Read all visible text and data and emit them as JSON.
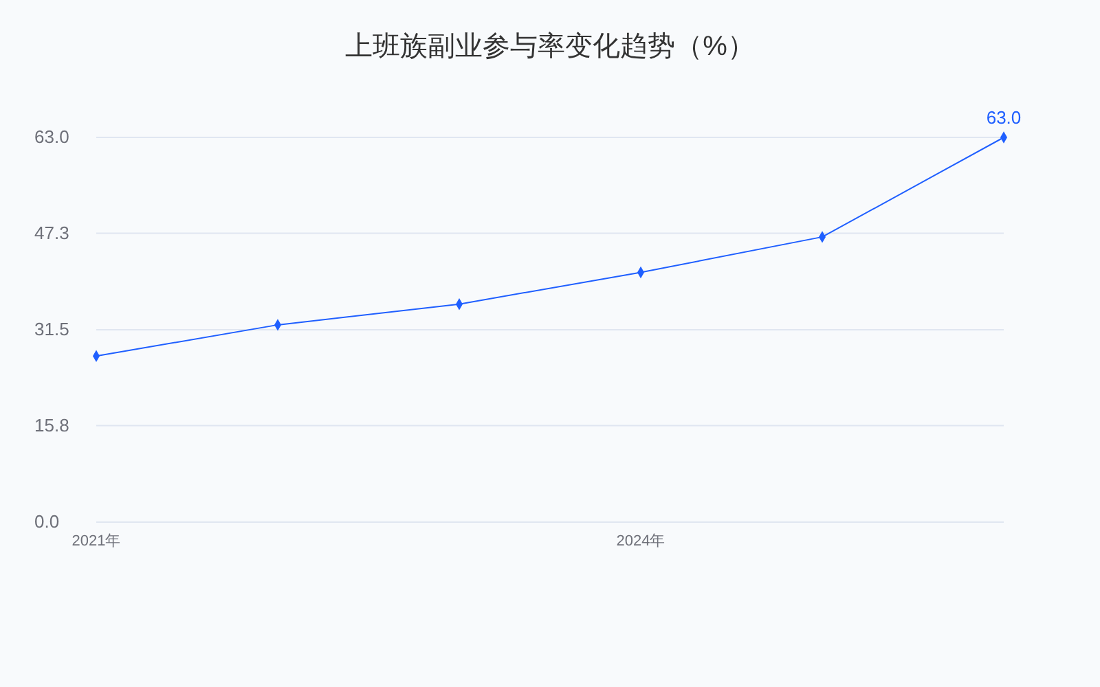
{
  "chart_data": {
    "type": "line",
    "title": "上班族副业参与率变化趋势（%）",
    "categories": [
      "2021年",
      null,
      null,
      "2024年",
      null,
      null
    ],
    "series": [
      {
        "color": "#1f5fff",
        "values": [
          27.2,
          32.3,
          35.7,
          40.9,
          46.7,
          63.0
        ],
        "value_labels": [
          null,
          null,
          null,
          null,
          null,
          "63.0"
        ]
      }
    ],
    "ylim": [
      0,
      63
    ],
    "yticks": [
      {
        "value": 0,
        "label": "0.0"
      },
      15.8,
      31.5,
      47.3,
      {
        "value": 63,
        "label": "63.0"
      }
    ],
    "grid": "y",
    "marker": "diamond",
    "line_style": "solid"
  }
}
